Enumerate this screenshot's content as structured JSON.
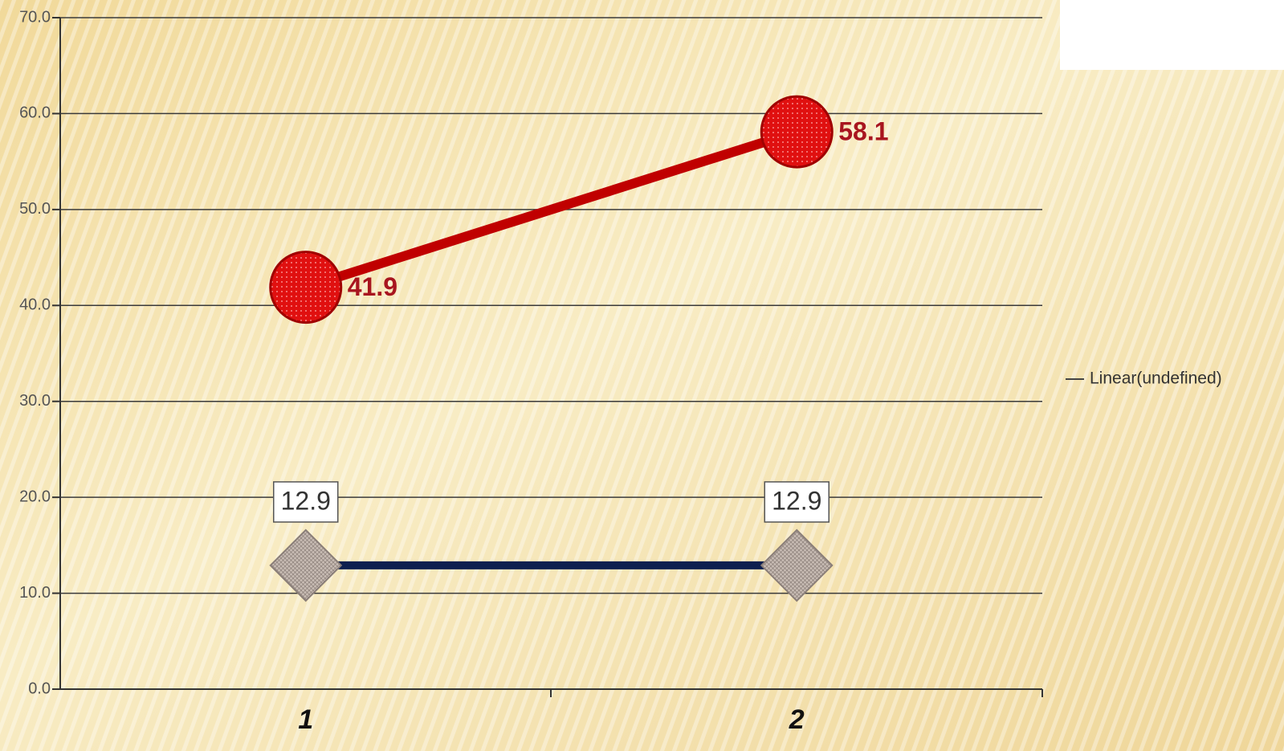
{
  "chart_data": {
    "type": "line",
    "categories": [
      "1",
      "2"
    ],
    "series": [
      {
        "color": "#c00000",
        "marker": "circle",
        "values": [
          41.9,
          58.1
        ]
      },
      {
        "color": "#0d1f4f",
        "marker": "diamond",
        "values": [
          12.9,
          12.9
        ]
      }
    ],
    "legend": [
      "Linear(undefined)"
    ],
    "legend_position": "right",
    "ylim": [
      0,
      70
    ],
    "yticks": [
      {
        "value": 0,
        "label": "0.0"
      },
      {
        "value": 10,
        "label": "10.0"
      },
      {
        "value": 20,
        "label": "20.0"
      },
      {
        "value": 30,
        "label": "30.0"
      },
      {
        "value": 40,
        "label": "40.0"
      },
      {
        "value": 50,
        "label": "50.0"
      },
      {
        "value": 60,
        "label": "60.0"
      },
      {
        "value": 70,
        "label": "70.0"
      }
    ],
    "grid": true
  }
}
